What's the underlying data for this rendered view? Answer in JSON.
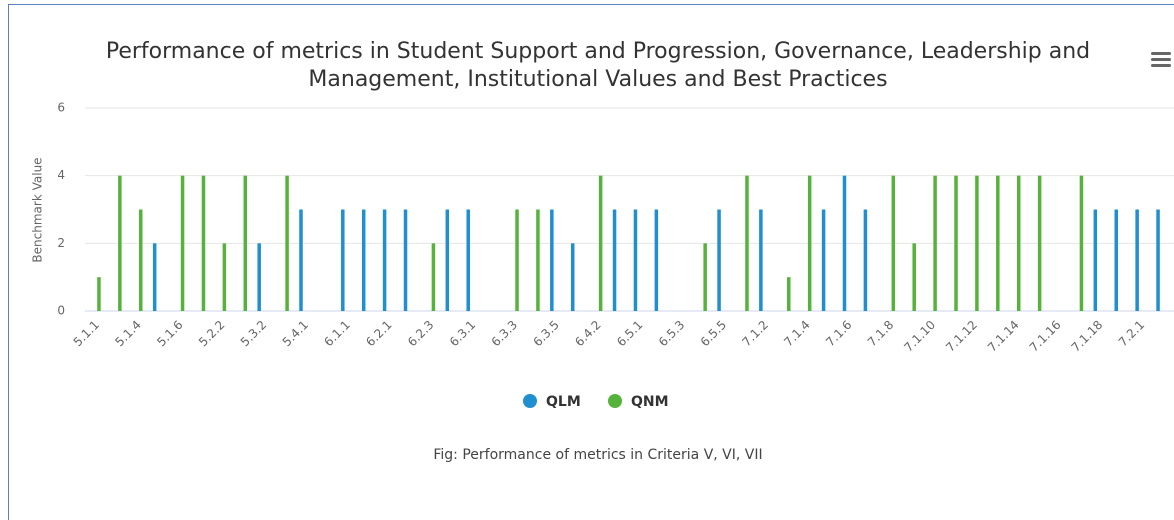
{
  "chart_data": {
    "type": "bar",
    "title": "Performance of metrics in Student Support and Progression, Governance, Leadership and Management, Institutional Values and Best Practices",
    "y_label": "Benchmark Value",
    "caption": "Fig: Performance of metrics in Criteria V, VI, VII",
    "categories": [
      "5.1.1",
      null,
      "5.1.4",
      null,
      "5.1.6",
      null,
      "5.2.2",
      null,
      "5.3.2",
      null,
      "5.4.1",
      null,
      "6.1.1",
      null,
      "6.2.1",
      null,
      "6.2.3",
      null,
      "6.3.1",
      null,
      "6.3.3",
      null,
      "6.3.5",
      null,
      "6.4.2",
      null,
      "6.5.1",
      null,
      "6.5.3",
      null,
      "6.5.5",
      null,
      "7.1.2",
      null,
      "7.1.4",
      null,
      "7.1.6",
      null,
      "7.1.8",
      null,
      "7.1.10",
      null,
      "7.1.12",
      null,
      "7.1.14",
      null,
      "7.1.16",
      null,
      "7.1.18",
      null,
      "7.2.1",
      null
    ],
    "series": [
      {
        "name": "QLM",
        "color": "#1f8fcf",
        "values": [
          0,
          0,
          0,
          2,
          0,
          0,
          0,
          0,
          2,
          0,
          3,
          0,
          3,
          3,
          3,
          3,
          0,
          3,
          3,
          0,
          0,
          0,
          3,
          2,
          0,
          3,
          3,
          3,
          0,
          0,
          3,
          0,
          3,
          0,
          0,
          3,
          4,
          3,
          0,
          0,
          0,
          0,
          0,
          0,
          0,
          0,
          0,
          0,
          3,
          3,
          3,
          3
        ]
      },
      {
        "name": "QNM",
        "color": "#55b33b",
        "values": [
          1,
          4,
          3,
          0,
          4,
          4,
          2,
          4,
          0,
          4,
          0,
          0,
          0,
          0,
          0,
          0,
          2,
          0,
          0,
          0,
          3,
          3,
          0,
          0,
          4,
          0,
          0,
          0,
          0,
          2,
          0,
          4,
          0,
          1,
          4,
          0,
          0,
          0,
          4,
          2,
          4,
          4,
          4,
          4,
          4,
          4,
          0,
          4,
          0,
          0,
          0,
          0
        ]
      }
    ],
    "ylim": [
      0,
      6
    ],
    "yticks": [
      0,
      2,
      4,
      6
    ],
    "grid": true,
    "legend": "bottom"
  }
}
